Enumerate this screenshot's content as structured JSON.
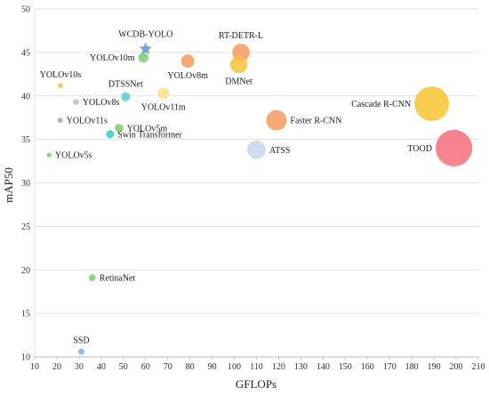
{
  "chart_data": {
    "type": "scatter",
    "title": "",
    "xlabel": "GFLOPs",
    "ylabel": "mAP50",
    "xlim": [
      10,
      210
    ],
    "ylim": [
      10,
      50
    ],
    "xticks": [
      10,
      20,
      30,
      40,
      50,
      60,
      70,
      80,
      90,
      100,
      110,
      120,
      130,
      140,
      150,
      160,
      170,
      180,
      190,
      200,
      210
    ],
    "yticks": [
      10,
      15,
      20,
      25,
      30,
      35,
      40,
      45,
      50
    ],
    "grid": "horizontal",
    "legend": "none",
    "points": [
      {
        "label": "WCDB-YOLO",
        "x": 60,
        "y": 45.4,
        "marker": "star",
        "color": "#6f9be0",
        "label_pos": "above"
      },
      {
        "label": "YOLOv10m",
        "x": 59,
        "y": 44.4,
        "marker": "circle",
        "color": "#7ccf6a",
        "label_pos": "left"
      },
      {
        "label": "YOLOv8m",
        "x": 79,
        "y": 44.0,
        "marker": "circle",
        "color": "#f59a5c",
        "label_pos": "below"
      },
      {
        "label": "RT-DETR-L",
        "x": 103,
        "y": 45.0,
        "marker": "circle",
        "color": "#f59a5c",
        "label_pos": "above"
      },
      {
        "label": "DMNet",
        "x": 102,
        "y": 43.6,
        "marker": "circle",
        "color": "#f6c33c",
        "label_pos": "below"
      },
      {
        "label": "YOLOv10s",
        "x": 21.6,
        "y": 41.2,
        "marker": "circle",
        "color": "#f6c33c",
        "label_pos": "above"
      },
      {
        "label": "DTSSNet",
        "x": 51,
        "y": 39.9,
        "marker": "circle",
        "color": "#56d0d6",
        "label_pos": "above"
      },
      {
        "label": "YOLOv11m",
        "x": 68,
        "y": 40.3,
        "marker": "circle",
        "color": "#fae08a",
        "label_pos": "below"
      },
      {
        "label": "YOLOv8s",
        "x": 28.6,
        "y": 39.3,
        "marker": "circle",
        "color": "#c0c0c0",
        "label_pos": "right"
      },
      {
        "label": "Cascade R-CNN",
        "x": 189,
        "y": 39.1,
        "marker": "circle",
        "color": "#f8c62e",
        "label_pos": "left"
      },
      {
        "label": "YOLOv11s",
        "x": 21.5,
        "y": 37.2,
        "marker": "circle",
        "color": "#87acd6",
        "label_pos": "right"
      },
      {
        "label": "Faster R-CNN",
        "x": 119,
        "y": 37.2,
        "marker": "circle",
        "color": "#f59a5c",
        "label_pos": "right"
      },
      {
        "label": "YOLOv5m",
        "x": 48,
        "y": 36.3,
        "marker": "circle",
        "color": "#7ccf6a",
        "label_pos": "right"
      },
      {
        "label": "Swin Transformer",
        "x": 44,
        "y": 35.6,
        "marker": "circle",
        "color": "#2fcec4",
        "label_pos": "right"
      },
      {
        "label": "ATSS",
        "x": 110,
        "y": 33.8,
        "marker": "circle",
        "color": "#c9d6ee",
        "label_pos": "right"
      },
      {
        "label": "TOOD",
        "x": 199,
        "y": 34.0,
        "marker": "circle",
        "color": "#f66f7a",
        "label_pos": "left"
      },
      {
        "label": "YOLOv5s",
        "x": 16.5,
        "y": 33.2,
        "marker": "circle",
        "color": "#7ccf6a",
        "label_pos": "right"
      },
      {
        "label": "RetinaNet",
        "x": 36,
        "y": 19.1,
        "marker": "circle",
        "color": "#7ccf6a",
        "label_pos": "right"
      },
      {
        "label": "SSD",
        "x": 31,
        "y": 10.6,
        "marker": "circle",
        "color": "#87acd6",
        "label_pos": "above"
      }
    ]
  }
}
